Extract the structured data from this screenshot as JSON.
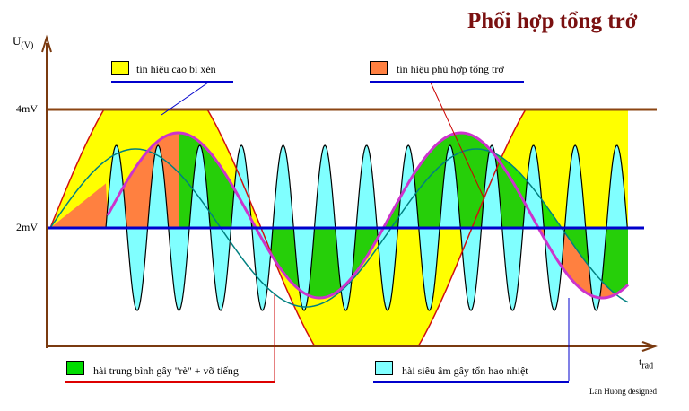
{
  "title": "Phối hợp tổng trở",
  "credit": "Lan Huong designed",
  "axes": {
    "y_label": "U",
    "y_unit": "(V)",
    "x_label": "t",
    "x_unit": "rad",
    "tick_4mv": "4mV",
    "tick_2mv": "2mV"
  },
  "legend": [
    {
      "label": "tín hiệu cao bị xén",
      "color": "#ffff00",
      "underline": "#0000cc"
    },
    {
      "label": "tín hiệu phù hợp tổng trở",
      "color": "#ff8040",
      "underline": "#0000cc"
    },
    {
      "label": "hài trung bình gây \"rè\" + vỡ tiếng",
      "color": "#00dd00",
      "underline": "#dd0000"
    },
    {
      "label": "hài siêu âm gây tổn hao nhiệt",
      "color": "#80ffff",
      "underline": "#0000cc"
    }
  ],
  "colors": {
    "title": "#7a1010",
    "axis": "#7a3a10",
    "clip_line": "#8b4513",
    "baseline": "#0000cc",
    "clipped": "#ffff00",
    "matched": "#ff8040",
    "mid_harmonic": "#00dd00",
    "ultrasonic": "#80ffff",
    "teal_wave": "#008080",
    "magenta_wave": "#cc33cc"
  }
}
